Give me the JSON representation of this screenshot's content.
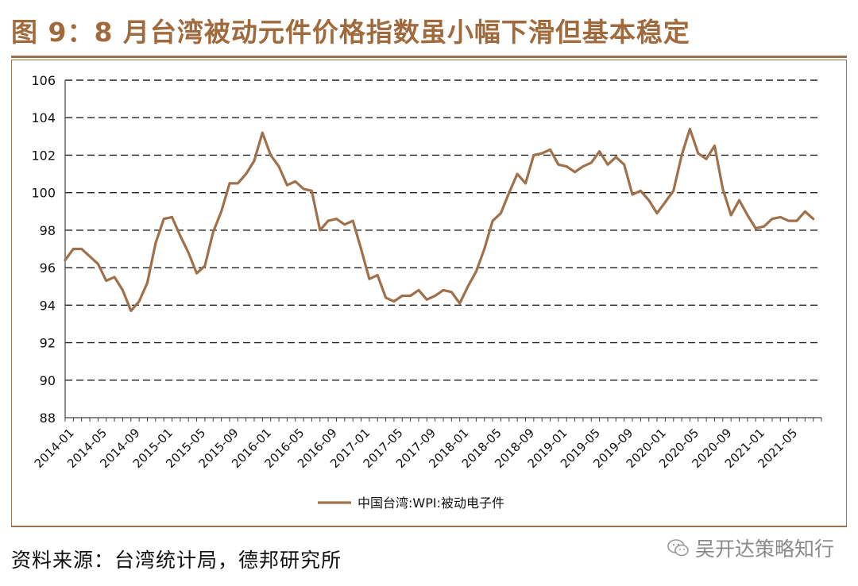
{
  "header": {
    "title": "图 9：8 月台湾被动元件价格指数虽小幅下滑但基本稳定"
  },
  "footer": {
    "source": "资料来源：台湾统计局，德邦研究所",
    "watermark": "吴开达策略知行",
    "watermark_icon": "wechat-icon"
  },
  "colors": {
    "line": "#a0704a",
    "accent": "#a06a3c",
    "rule": "#9b7150"
  },
  "chart_data": {
    "type": "line",
    "title": "",
    "xlabel": "",
    "ylabel": "",
    "ylim": [
      88,
      106
    ],
    "yticks": [
      88,
      90,
      92,
      94,
      96,
      98,
      100,
      102,
      104,
      106
    ],
    "grid": true,
    "legend": "bottom-center",
    "x_tick_labels": [
      "2014-01",
      "2014-05",
      "2014-09",
      "2015-01",
      "2015-05",
      "2015-09",
      "2016-01",
      "2016-05",
      "2016-09",
      "2017-01",
      "2017-05",
      "2017-09",
      "2018-01",
      "2018-05",
      "2018-09",
      "2019-01",
      "2019-05",
      "2019-09",
      "2020-01",
      "2020-05",
      "2020-09",
      "2021-01",
      "2021-05"
    ],
    "start": "2014-01",
    "series": [
      {
        "name": "中国台湾:WPI:被动电子件",
        "color": "#a0704a",
        "values": [
          96.4,
          97.0,
          97.0,
          96.6,
          96.2,
          95.3,
          95.5,
          94.8,
          93.7,
          94.2,
          95.2,
          97.3,
          98.6,
          98.7,
          97.7,
          96.8,
          95.7,
          96.1,
          97.9,
          99.0,
          100.5,
          100.5,
          101.0,
          101.7,
          103.2,
          102.0,
          101.4,
          100.4,
          100.6,
          100.2,
          100.1,
          98.0,
          98.5,
          98.6,
          98.3,
          98.5,
          97.0,
          95.4,
          95.6,
          94.4,
          94.2,
          94.5,
          94.5,
          94.8,
          94.3,
          94.5,
          94.8,
          94.7,
          94.1,
          95.0,
          95.8,
          97.0,
          98.5,
          98.9,
          100.0,
          101.0,
          100.5,
          102.0,
          102.1,
          102.3,
          101.5,
          101.4,
          101.1,
          101.4,
          101.6,
          102.2,
          101.5,
          101.9,
          101.5,
          99.9,
          100.1,
          99.6,
          98.9,
          99.5,
          100.1,
          102.0,
          103.4,
          102.1,
          101.8,
          102.5,
          100.2,
          98.8,
          99.6,
          98.8,
          98.1,
          98.2,
          98.6,
          98.7,
          98.5,
          98.5,
          99.0,
          98.6
        ]
      }
    ]
  }
}
